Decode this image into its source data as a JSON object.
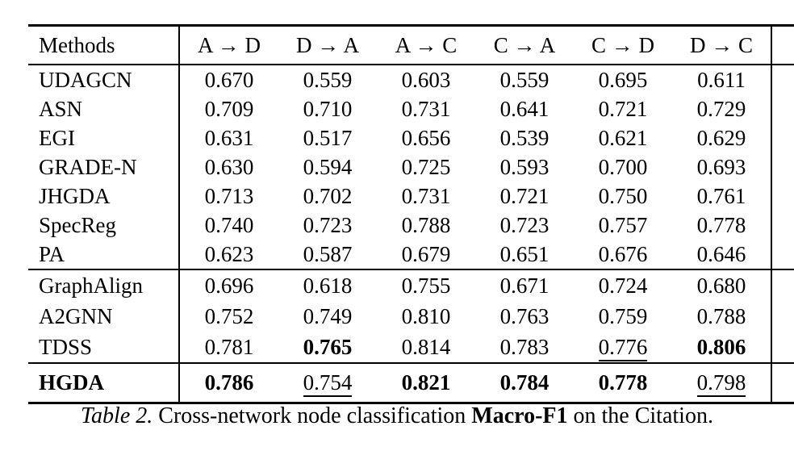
{
  "page": {
    "background": "#ffffff",
    "text_color": "#000000",
    "rule_color": "#000000"
  },
  "table": {
    "columns": [
      {
        "label": "Methods"
      },
      {
        "label": "A → D"
      },
      {
        "label": "D → A"
      },
      {
        "label": "A → C"
      },
      {
        "label": "C → A"
      },
      {
        "label": "C → D"
      },
      {
        "label": "D → C"
      }
    ],
    "sections": [
      {
        "name": "baselines-group-1",
        "rows": [
          {
            "method": "UDAGCN",
            "method_style": "n",
            "values": [
              {
                "v": "0.670",
                "s": "n"
              },
              {
                "v": "0.559",
                "s": "n"
              },
              {
                "v": "0.603",
                "s": "n"
              },
              {
                "v": "0.559",
                "s": "n"
              },
              {
                "v": "0.695",
                "s": "n"
              },
              {
                "v": "0.611",
                "s": "n"
              }
            ]
          },
          {
            "method": "ASN",
            "method_style": "n",
            "values": [
              {
                "v": "0.709",
                "s": "n"
              },
              {
                "v": "0.710",
                "s": "n"
              },
              {
                "v": "0.731",
                "s": "n"
              },
              {
                "v": "0.641",
                "s": "n"
              },
              {
                "v": "0.721",
                "s": "n"
              },
              {
                "v": "0.729",
                "s": "n"
              }
            ]
          },
          {
            "method": "EGI",
            "method_style": "n",
            "values": [
              {
                "v": "0.631",
                "s": "n"
              },
              {
                "v": "0.517",
                "s": "n"
              },
              {
                "v": "0.656",
                "s": "n"
              },
              {
                "v": "0.539",
                "s": "n"
              },
              {
                "v": "0.621",
                "s": "n"
              },
              {
                "v": "0.629",
                "s": "n"
              }
            ]
          },
          {
            "method": "GRADE-N",
            "method_style": "n",
            "values": [
              {
                "v": "0.630",
                "s": "n"
              },
              {
                "v": "0.594",
                "s": "n"
              },
              {
                "v": "0.725",
                "s": "n"
              },
              {
                "v": "0.593",
                "s": "n"
              },
              {
                "v": "0.700",
                "s": "n"
              },
              {
                "v": "0.693",
                "s": "n"
              }
            ]
          },
          {
            "method": "JHGDA",
            "method_style": "n",
            "values": [
              {
                "v": "0.713",
                "s": "n"
              },
              {
                "v": "0.702",
                "s": "n"
              },
              {
                "v": "0.731",
                "s": "n"
              },
              {
                "v": "0.721",
                "s": "n"
              },
              {
                "v": "0.750",
                "s": "n"
              },
              {
                "v": "0.761",
                "s": "n"
              }
            ]
          },
          {
            "method": "SpecReg",
            "method_style": "n",
            "values": [
              {
                "v": "0.740",
                "s": "n"
              },
              {
                "v": "0.723",
                "s": "n"
              },
              {
                "v": "0.788",
                "s": "n"
              },
              {
                "v": "0.723",
                "s": "n"
              },
              {
                "v": "0.757",
                "s": "n"
              },
              {
                "v": "0.778",
                "s": "n"
              }
            ]
          },
          {
            "method": "PA",
            "method_style": "n",
            "values": [
              {
                "v": "0.623",
                "s": "n"
              },
              {
                "v": "0.587",
                "s": "n"
              },
              {
                "v": "0.679",
                "s": "n"
              },
              {
                "v": "0.651",
                "s": "n"
              },
              {
                "v": "0.676",
                "s": "n"
              },
              {
                "v": "0.646",
                "s": "n"
              }
            ]
          }
        ]
      },
      {
        "name": "baselines-group-2",
        "rows": [
          {
            "method": "GraphAlign",
            "method_style": "n",
            "values": [
              {
                "v": "0.696",
                "s": "n"
              },
              {
                "v": "0.618",
                "s": "n"
              },
              {
                "v": "0.755",
                "s": "n"
              },
              {
                "v": "0.671",
                "s": "n"
              },
              {
                "v": "0.724",
                "s": "n"
              },
              {
                "v": "0.680",
                "s": "n"
              }
            ]
          },
          {
            "method": "A2GNN",
            "method_style": "n",
            "values": [
              {
                "v": "0.752",
                "s": "n"
              },
              {
                "v": "0.749",
                "s": "n"
              },
              {
                "v": "0.810",
                "s": "n"
              },
              {
                "v": "0.763",
                "s": "n"
              },
              {
                "v": "0.759",
                "s": "n"
              },
              {
                "v": "0.788",
                "s": "n"
              }
            ]
          },
          {
            "method": "TDSS",
            "method_style": "n",
            "values": [
              {
                "v": "0.781",
                "s": "n"
              },
              {
                "v": "0.765",
                "s": "b"
              },
              {
                "v": "0.814",
                "s": "n"
              },
              {
                "v": "0.783",
                "s": "n"
              },
              {
                "v": "0.776",
                "s": "u"
              },
              {
                "v": "0.806",
                "s": "b"
              }
            ]
          }
        ]
      },
      {
        "name": "ours",
        "rows": [
          {
            "method": "HGDA",
            "method_style": "b",
            "values": [
              {
                "v": "0.786",
                "s": "b"
              },
              {
                "v": "0.754",
                "s": "u"
              },
              {
                "v": "0.821",
                "s": "b"
              },
              {
                "v": "0.784",
                "s": "b"
              },
              {
                "v": "0.778",
                "s": "b"
              },
              {
                "v": "0.798",
                "s": "u"
              }
            ]
          }
        ]
      }
    ]
  },
  "caption": {
    "label": "Table 2.",
    "before": " Cross-network node classification ",
    "highlight": "Macro-F1",
    "after": " on the Citation."
  }
}
